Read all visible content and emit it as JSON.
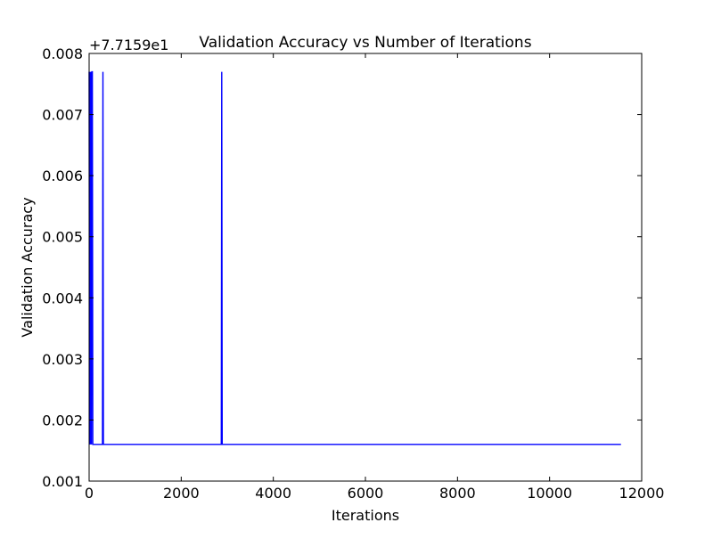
{
  "chart_data": {
    "type": "line",
    "title": "Validation Accuracy vs Number of Iterations",
    "xlabel": "Iterations",
    "ylabel": "Validation Accuracy",
    "offset_label": "+7.7159e1",
    "xlim": [
      0,
      12000
    ],
    "ylim": [
      0.001,
      0.008
    ],
    "x_ticks": [
      0,
      2000,
      4000,
      6000,
      8000,
      10000,
      12000
    ],
    "x_tick_labels": [
      "0",
      "2000",
      "4000",
      "6000",
      "8000",
      "10000",
      "12000"
    ],
    "y_ticks": [
      0.001,
      0.002,
      0.003,
      0.004,
      0.005,
      0.006,
      0.007,
      0.008
    ],
    "y_tick_labels": [
      "0.001",
      "0.002",
      "0.003",
      "0.004",
      "0.005",
      "0.006",
      "0.007",
      "0.008"
    ],
    "grid": false,
    "line_color": "#0000ff",
    "series": [
      {
        "x": [
          0,
          10,
          20,
          30,
          40,
          50,
          60,
          70,
          80,
          90,
          290,
          300,
          310,
          2870,
          2880,
          2890,
          11550
        ],
        "values": [
          0.0077,
          0.0016,
          0.0077,
          0.0016,
          0.0077,
          0.0016,
          0.0077,
          0.0077,
          0.0016,
          0.0016,
          0.0016,
          0.0077,
          0.0016,
          0.0016,
          0.0077,
          0.0016,
          0.0016
        ]
      }
    ]
  }
}
